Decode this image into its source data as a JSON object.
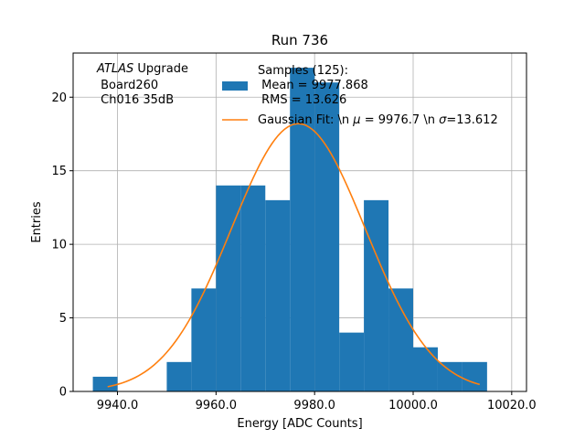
{
  "chart_data": {
    "type": "bar",
    "title": "Run 736",
    "xlabel": "Energy [ADC Counts]",
    "ylabel": "Entries",
    "xlim": [
      9931.0,
      10023.0
    ],
    "ylim": [
      0,
      23
    ],
    "grid": true,
    "colors": {
      "bars": "#1f77b4",
      "fit": "#ff7f0e"
    },
    "x_ticks": [
      9940.0,
      9960.0,
      9980.0,
      10000.0,
      10020.0
    ],
    "x_tick_labels": [
      "9940.0",
      "9960.0",
      "9980.0",
      "10000.0",
      "10020.0"
    ],
    "y_ticks": [
      0,
      5,
      10,
      15,
      20
    ],
    "y_tick_labels": [
      "0",
      "5",
      "10",
      "15",
      "20"
    ],
    "bin_edges": [
      9935,
      9940,
      9945,
      9950,
      9955,
      9960,
      9965,
      9970,
      9975,
      9980,
      9985,
      9990,
      9995,
      10000,
      10005,
      10010,
      10015
    ],
    "counts": [
      1,
      0,
      0,
      2,
      7,
      14,
      14,
      13,
      22,
      21,
      4,
      13,
      7,
      3,
      2,
      2
    ],
    "fit": {
      "amplitude": 18.2,
      "mu": 9976.7,
      "sigma": 13.612,
      "x_range": [
        9938.0,
        10013.5
      ]
    },
    "annotation": {
      "experiment": "ATLAS",
      "experiment_suffix": " Upgrade",
      "board": " Board260",
      "channel": " Ch016 35dB"
    },
    "legend": {
      "placement": "top-right",
      "samples_line1": "Samples (125):",
      "samples_line2": " Mean = 9977.868",
      "samples_line3": " RMS = 13.626",
      "fit_prefix": "Gaussian Fit: \\n ",
      "fit_mu_symbol": "μ",
      "fit_mid": " = 9976.7 \\n ",
      "fit_sigma_symbol": "σ",
      "fit_suffix": "=13.612"
    }
  }
}
